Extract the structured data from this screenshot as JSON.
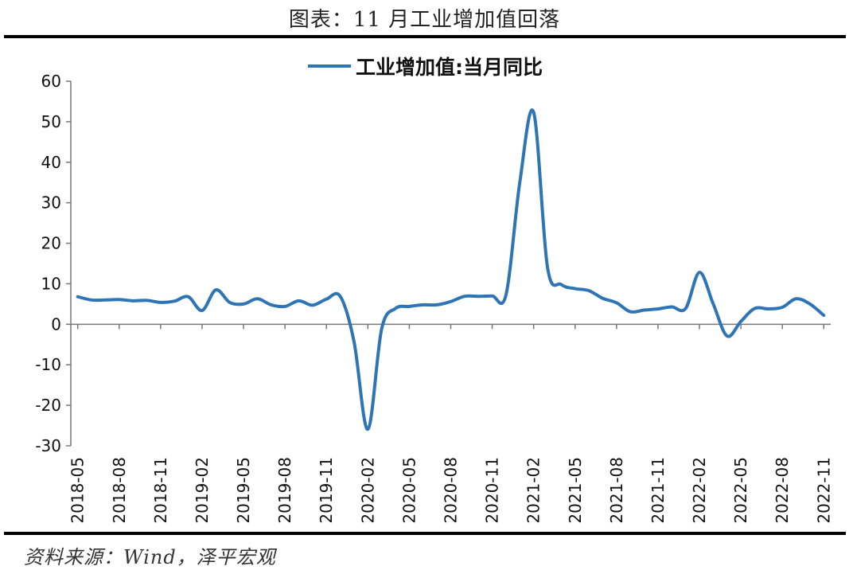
{
  "header": {
    "title": "图表：11 月工业增加值回落"
  },
  "footer": {
    "source": "资料来源：Wind，泽平宏观"
  },
  "chart_data": {
    "type": "line",
    "title": "",
    "xlabel": "",
    "ylabel": "",
    "ylim": [
      -30,
      60
    ],
    "yticks": [
      60,
      50,
      40,
      30,
      20,
      10,
      0,
      -10,
      -20,
      -30
    ],
    "grid": false,
    "legend_position": "top-center",
    "color": "#2E75B6",
    "x_tick_labels": [
      "2018-05",
      "2018-08",
      "2018-11",
      "2019-02",
      "2019-05",
      "2019-08",
      "2019-11",
      "2020-02",
      "2020-05",
      "2020-08",
      "2020-11",
      "2021-02",
      "2021-05",
      "2021-08",
      "2021-11",
      "2022-02",
      "2022-05",
      "2022-08",
      "2022-11"
    ],
    "x": [
      "2018-05",
      "2018-06",
      "2018-07",
      "2018-08",
      "2018-09",
      "2018-10",
      "2018-11",
      "2018-12",
      "2019-01",
      "2019-02",
      "2019-03",
      "2019-04",
      "2019-05",
      "2019-06",
      "2019-07",
      "2019-08",
      "2019-09",
      "2019-10",
      "2019-11",
      "2019-12",
      "2020-01",
      "2020-02",
      "2020-03",
      "2020-04",
      "2020-05",
      "2020-06",
      "2020-07",
      "2020-08",
      "2020-09",
      "2020-10",
      "2020-11",
      "2020-12",
      "2021-01",
      "2021-02",
      "2021-03",
      "2021-04",
      "2021-05",
      "2021-06",
      "2021-07",
      "2021-08",
      "2021-09",
      "2021-10",
      "2021-11",
      "2021-12",
      "2022-01",
      "2022-02",
      "2022-03",
      "2022-04",
      "2022-05",
      "2022-06",
      "2022-07",
      "2022-08",
      "2022-09",
      "2022-10",
      "2022-11"
    ],
    "series": [
      {
        "name": "工业增加值:当月同比",
        "values": [
          6.8,
          6.0,
          6.0,
          6.1,
          5.8,
          5.9,
          5.4,
          5.7,
          6.8,
          3.4,
          8.5,
          5.4,
          5.0,
          6.3,
          4.8,
          4.4,
          5.8,
          4.7,
          6.2,
          6.9,
          -4.3,
          -25.9,
          -1.1,
          3.9,
          4.4,
          4.8,
          4.8,
          5.6,
          6.9,
          6.9,
          7.0,
          7.3,
          35.1,
          52.3,
          14.1,
          9.8,
          8.8,
          8.3,
          6.4,
          5.3,
          3.1,
          3.5,
          3.8,
          4.3,
          3.9,
          12.8,
          5.0,
          -2.9,
          0.7,
          3.9,
          3.8,
          4.2,
          6.3,
          5.0,
          2.2
        ]
      }
    ]
  }
}
